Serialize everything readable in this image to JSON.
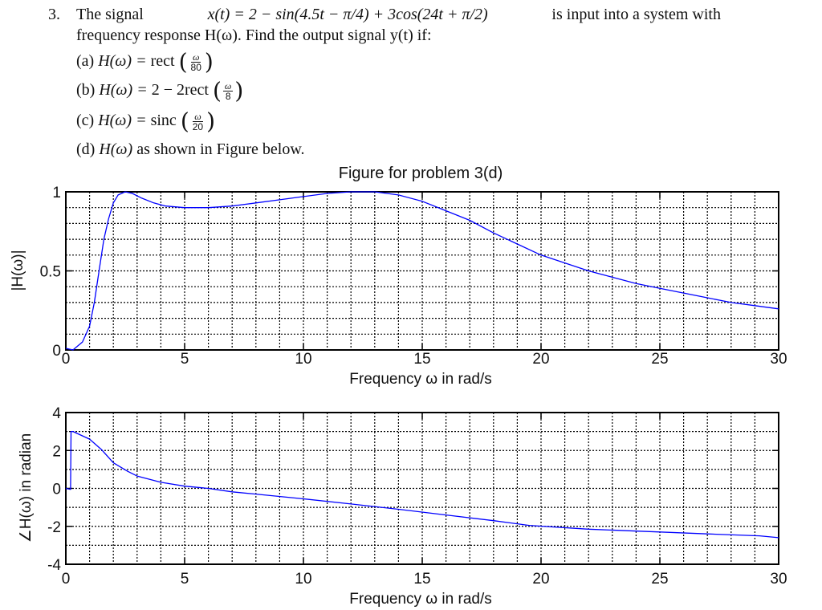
{
  "problem": {
    "number": "3.",
    "intro_line1_left": "The signal",
    "signal_expr": "x(t) = 2 − sin(4.5t − π/4) + 3cos(24t + π/2)",
    "intro_line1_right": "is input into a system with",
    "intro_line2": "frequency response H(ω). Find the output signal y(t) if:",
    "parts": [
      {
        "label": "(a)",
        "lhs": "H(ω) = ",
        "fn": "rect",
        "prefix": "",
        "num": "ω",
        "den": "80",
        "suffix": ""
      },
      {
        "label": "(b)",
        "lhs": "H(ω) = ",
        "fn": "2rect",
        "prefix": "2 − ",
        "num": "ω",
        "den": "8",
        "suffix": ""
      },
      {
        "label": "(c)",
        "lhs": "H(ω) = ",
        "fn": "sinc",
        "prefix": "",
        "num": "ω",
        "den": "20",
        "suffix": ""
      },
      {
        "label": "(d)",
        "lhs": "H(ω)",
        "text": "as shown in Figure below."
      }
    ]
  },
  "chart_data": [
    {
      "type": "line",
      "title": "Figure for problem 3(d)",
      "xlabel": "Frequency ω in rad/s",
      "ylabel": "|H(ω)|",
      "xlim": [
        0,
        30
      ],
      "ylim": [
        0,
        1
      ],
      "xticks": [
        0,
        5,
        10,
        15,
        20,
        25,
        30
      ],
      "yticks": [
        0,
        0.5,
        1
      ],
      "ytick_labels": [
        "0",
        "0.5",
        "1"
      ],
      "grid": true,
      "grid_x_step": 1,
      "grid_y_step": 0.1,
      "line_color": "#0000ff",
      "x": [
        0,
        0.3,
        0.7,
        1.0,
        1.2,
        1.4,
        1.6,
        1.8,
        2.0,
        2.2,
        2.5,
        2.8,
        3.2,
        3.7,
        4.2,
        5.0,
        6.0,
        7.0,
        8.0,
        9.0,
        10.0,
        11.0,
        12.0,
        13.0,
        14.0,
        15.0,
        16.0,
        17.0,
        18.0,
        19.0,
        20.0,
        21.0,
        22.0,
        23.0,
        24.0,
        25.0,
        26.0,
        27.0,
        28.0,
        29.0,
        30.0
      ],
      "y": [
        0.01,
        0.0,
        0.05,
        0.15,
        0.3,
        0.5,
        0.7,
        0.83,
        0.93,
        0.98,
        1.0,
        0.99,
        0.96,
        0.93,
        0.91,
        0.9,
        0.9,
        0.91,
        0.93,
        0.95,
        0.97,
        0.99,
        1.0,
        1.0,
        0.98,
        0.94,
        0.88,
        0.82,
        0.74,
        0.67,
        0.6,
        0.55,
        0.5,
        0.46,
        0.42,
        0.39,
        0.36,
        0.33,
        0.3,
        0.28,
        0.26
      ]
    },
    {
      "type": "line",
      "title": "",
      "xlabel": "Frequency ω in rad/s",
      "ylabel": "∠H(ω) in radian",
      "xlim": [
        0,
        30
      ],
      "ylim": [
        -4,
        4
      ],
      "xticks": [
        0,
        5,
        10,
        15,
        20,
        25,
        30
      ],
      "yticks": [
        -4,
        -2,
        0,
        2,
        4
      ],
      "ytick_labels": [
        "-4",
        "-2",
        "0",
        "2",
        "4"
      ],
      "grid": true,
      "grid_x_step": 1,
      "grid_y_step": 1,
      "line_color": "#0000ff",
      "x": [
        0,
        0.2,
        0.22,
        0.3,
        1.0,
        1.5,
        2.0,
        2.6,
        3.0,
        4.0,
        5.0,
        6.0,
        7.0,
        8.0,
        10.0,
        12.0,
        14.0,
        16.0,
        18.0,
        19.5,
        22.0,
        25.0,
        27.0,
        29.2,
        30.0
      ],
      "y": [
        0.0,
        -0.05,
        3.0,
        3.0,
        2.6,
        2.05,
        1.35,
        0.9,
        0.65,
        0.32,
        0.12,
        0.0,
        -0.18,
        -0.3,
        -0.55,
        -0.82,
        -1.1,
        -1.4,
        -1.7,
        -1.95,
        -2.15,
        -2.3,
        -2.4,
        -2.5,
        -2.6
      ]
    }
  ]
}
